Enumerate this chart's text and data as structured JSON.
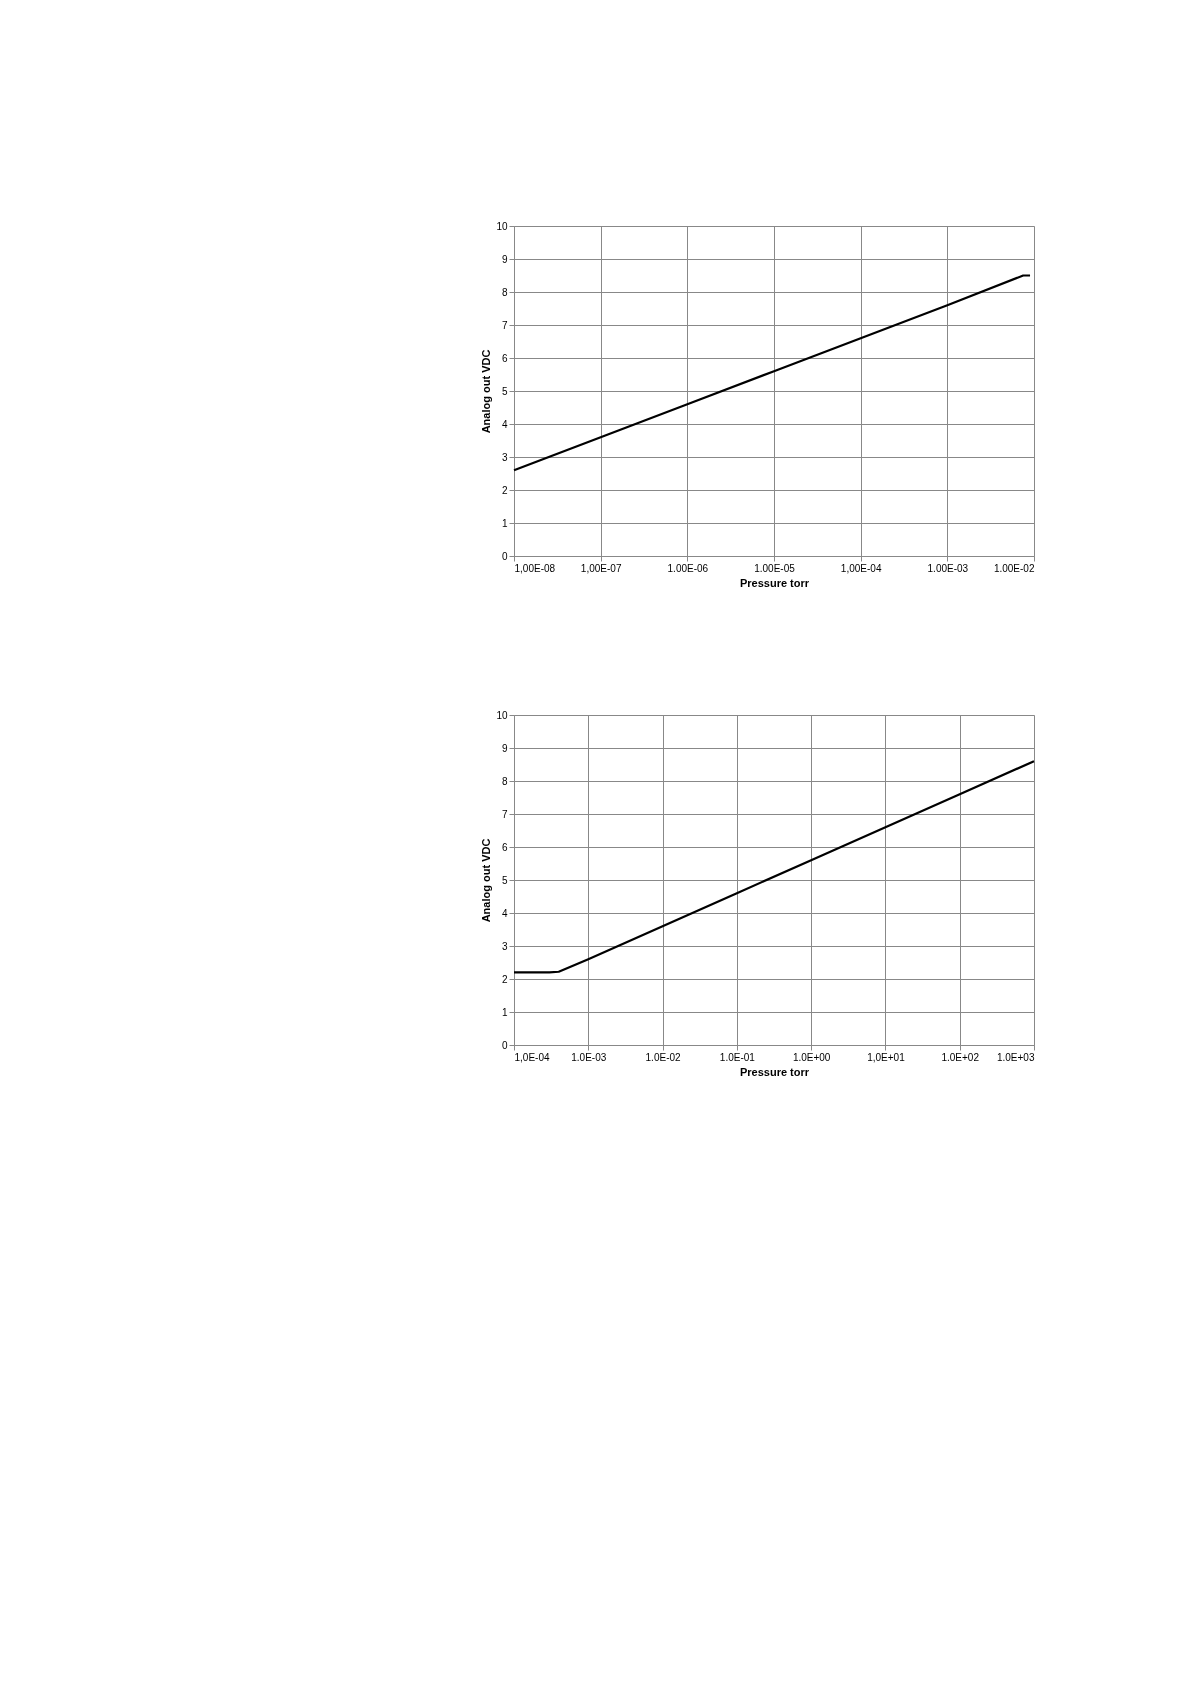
{
  "chart_data": [
    {
      "type": "line",
      "xlabel": "Pressure torr",
      "ylabel": "Analog out VDC",
      "log": "x",
      "grid": true,
      "x": [
        1e-08,
        1e-07,
        1e-06,
        1e-05,
        0.0001,
        0.001,
        0.0075,
        0.009
      ],
      "series": [
        {
          "color": "#000000",
          "values": [
            2.6,
            3.6,
            4.6,
            5.6,
            6.6,
            7.6,
            8.5,
            8.5
          ]
        }
      ],
      "xlim": [
        1e-08,
        0.01
      ],
      "ylim": [
        0,
        10
      ],
      "yticks": [
        0,
        1,
        2,
        3,
        4,
        5,
        6,
        7,
        8,
        9,
        10
      ],
      "xticks": [
        {
          "value": 1e-08,
          "label": "1,00E-08"
        },
        {
          "value": 1e-07,
          "label": "1,00E-07"
        },
        {
          "value": 1e-06,
          "label": "1.00E-06"
        },
        {
          "value": 1e-05,
          "label": "1.00E-05"
        },
        {
          "value": 0.0001,
          "label": "1,00E-04"
        },
        {
          "value": 0.001,
          "label": "1.00E-03"
        },
        {
          "value": 0.01,
          "label": "1.00E-02"
        }
      ]
    },
    {
      "type": "line",
      "xlabel": "Pressure torr",
      "ylabel": "Analog out VDC",
      "log": "x",
      "grid": true,
      "x": [
        0.0001,
        0.0003,
        0.0004,
        0.001,
        0.01,
        0.1,
        1,
        10,
        100,
        1000
      ],
      "series": [
        {
          "color": "#000000",
          "values": [
            2.2,
            2.2,
            2.22,
            2.6,
            3.6,
            4.6,
            5.6,
            6.6,
            7.6,
            8.6
          ]
        }
      ],
      "xlim": [
        0.0001,
        1000
      ],
      "ylim": [
        0,
        10
      ],
      "yticks": [
        0,
        1,
        2,
        3,
        4,
        5,
        6,
        7,
        8,
        9,
        10
      ],
      "xticks": [
        {
          "value": 0.0001,
          "label": "1,0E-04"
        },
        {
          "value": 0.001,
          "label": "1.0E-03"
        },
        {
          "value": 0.01,
          "label": "1.0E-02"
        },
        {
          "value": 0.1,
          "label": "1.0E-01"
        },
        {
          "value": 1,
          "label": "1.0E+00"
        },
        {
          "value": 10,
          "label": "1,0E+01"
        },
        {
          "value": 100,
          "label": "1.0E+02"
        },
        {
          "value": 1000,
          "label": "1.0E+03"
        }
      ]
    }
  ]
}
